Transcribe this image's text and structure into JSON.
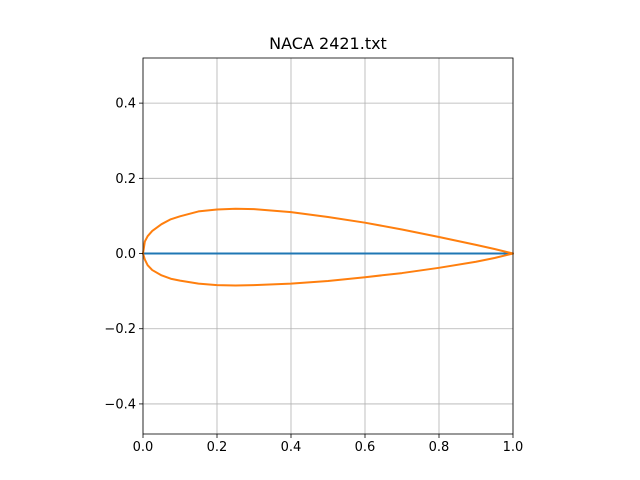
{
  "chart_data": {
    "type": "line",
    "title": "NACA 2421.txt",
    "xlabel": "",
    "ylabel": "",
    "xlim": [
      0.0,
      1.0
    ],
    "ylim": [
      -0.48,
      0.52
    ],
    "x_ticks": [
      0.0,
      0.2,
      0.4,
      0.6,
      0.8,
      1.0
    ],
    "x_tick_labels": [
      "0.0",
      "0.2",
      "0.4",
      "0.6",
      "0.8",
      "1.0"
    ],
    "y_ticks": [
      -0.4,
      -0.2,
      0.0,
      0.2,
      0.4
    ],
    "y_tick_labels": [
      "−0.4",
      "−0.2",
      "0.0",
      "0.2",
      "0.4"
    ],
    "grid": true,
    "aspect": "equal",
    "series": [
      {
        "color": "#1f77b4",
        "x": [
          0.0,
          1.0
        ],
        "y": [
          0.0,
          0.0
        ]
      },
      {
        "color": "#ff7f0e",
        "x": [
          1.0,
          0.95,
          0.9,
          0.8,
          0.7,
          0.6,
          0.5,
          0.4,
          0.3,
          0.25,
          0.2,
          0.15,
          0.1,
          0.075,
          0.05,
          0.025,
          0.0125,
          0.005,
          0.0,
          0.005,
          0.0125,
          0.025,
          0.05,
          0.075,
          0.1,
          0.15,
          0.2,
          0.25,
          0.3,
          0.4,
          0.5,
          0.6,
          0.7,
          0.8,
          0.9,
          0.95,
          1.0
        ],
        "y": [
          0.0,
          0.012,
          0.023,
          0.044,
          0.064,
          0.082,
          0.097,
          0.11,
          0.118,
          0.119,
          0.117,
          0.112,
          0.099,
          0.091,
          0.078,
          0.06,
          0.046,
          0.032,
          0.0,
          -0.016,
          -0.031,
          -0.044,
          -0.058,
          -0.067,
          -0.072,
          -0.08,
          -0.084,
          -0.085,
          -0.084,
          -0.08,
          -0.073,
          -0.063,
          -0.052,
          -0.038,
          -0.022,
          -0.012,
          0.0
        ]
      }
    ]
  }
}
